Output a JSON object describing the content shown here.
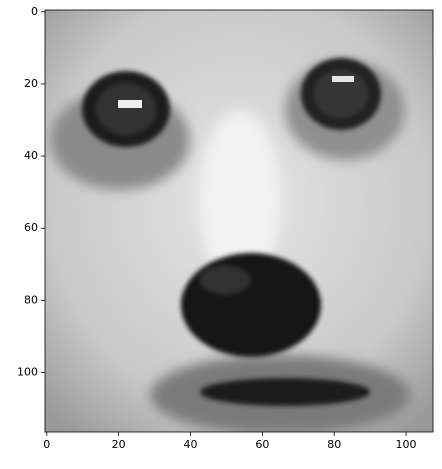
{
  "chart_data": {
    "type": "image",
    "colormap": "gray",
    "xlim": [
      -0.5,
      107.5
    ],
    "xticks": [
      0,
      20,
      40,
      60,
      80,
      100
    ],
    "ylim": [
      116.5,
      -0.5
    ],
    "yticks": [
      0,
      20,
      40,
      60,
      80,
      100
    ]
  }
}
